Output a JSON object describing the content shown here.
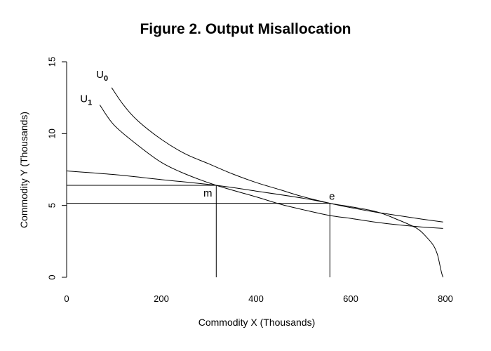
{
  "chart_data": {
    "type": "line",
    "title": "Figure 2.  Output Misallocation",
    "xlabel": "Commodity X (Thousands)",
    "ylabel": "Commodity Y (Thousands)",
    "xlim": [
      0,
      800
    ],
    "ylim": [
      0,
      15
    ],
    "x_ticks": [
      "0",
      "200",
      "400",
      "600",
      "800"
    ],
    "y_ticks": [
      "0",
      "5",
      "10",
      "15"
    ],
    "grid": false,
    "legend": "none",
    "series": [
      {
        "label_base": "U",
        "label_sub": "0",
        "x": [
          95,
          120,
          150,
          200,
          250,
          300,
          350,
          400,
          450,
          500,
          556,
          600,
          650,
          700,
          750,
          795
        ],
        "y": [
          13.2,
          12.0,
          10.9,
          9.6,
          8.6,
          7.9,
          7.2,
          6.6,
          6.1,
          5.6,
          5.15,
          4.85,
          4.55,
          4.3,
          4.05,
          3.85
        ]
      },
      {
        "label_base": "U",
        "label_sub": "1",
        "x": [
          70,
          100,
          150,
          200,
          250,
          316,
          400,
          450,
          500,
          556,
          600,
          650,
          700,
          750,
          795
        ],
        "y": [
          12.0,
          10.6,
          9.2,
          8.0,
          7.2,
          6.4,
          5.6,
          5.1,
          4.7,
          4.3,
          4.1,
          3.85,
          3.65,
          3.5,
          3.4
        ]
      },
      {
        "label_base": "",
        "label_sub": "",
        "x": [
          0,
          100,
          200,
          316,
          400,
          500,
          556,
          650,
          700,
          740,
          760,
          775,
          783,
          788,
          792,
          795
        ],
        "y": [
          7.4,
          7.15,
          6.8,
          6.4,
          6.0,
          5.5,
          5.15,
          4.6,
          4.0,
          3.4,
          2.8,
          2.2,
          1.6,
          0.9,
          0.3,
          0.0
        ]
      }
    ],
    "annotations": [
      {
        "label": "m",
        "x": 316,
        "y": 6.4
      },
      {
        "label": "e",
        "x": 556,
        "y": 5.15
      }
    ]
  }
}
